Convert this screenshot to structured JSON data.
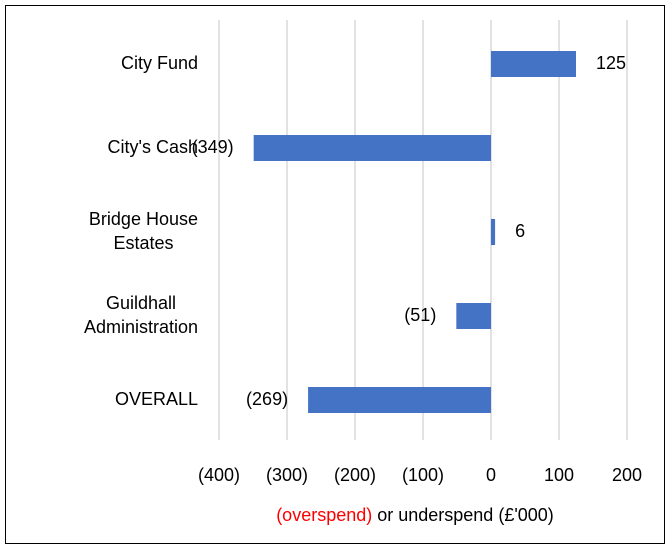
{
  "chart_data": {
    "type": "barh",
    "categories": [
      [
        "City Fund"
      ],
      [
        "City's Cash"
      ],
      [
        "Bridge House",
        "Estates"
      ],
      [
        "Guildhall",
        "Administration"
      ],
      [
        "OVERALL"
      ]
    ],
    "values": [
      125,
      -349,
      6,
      -51,
      -269
    ],
    "value_labels": [
      "125",
      "(349)",
      "6",
      "(51)",
      "(269)"
    ],
    "color": "#4472c4",
    "xlim": [
      -400,
      200
    ],
    "xticks": [
      {
        "value": -400,
        "label": "(400)"
      },
      {
        "value": -300,
        "label": "(300)"
      },
      {
        "value": -200,
        "label": "(200)"
      },
      {
        "value": -100,
        "label": "(100)"
      },
      0,
      100,
      200
    ],
    "grid": true,
    "xlabel": [
      {
        "text": "(overspend)",
        "color": "#ff0000"
      },
      {
        "text": " or underspend (£'000)",
        "color": "#000000"
      }
    ]
  }
}
